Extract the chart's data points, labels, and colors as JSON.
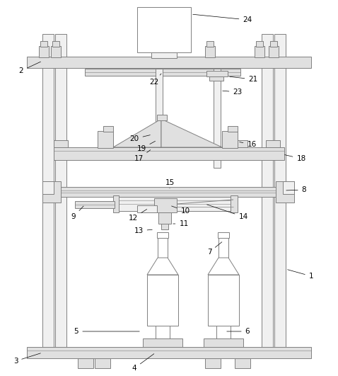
{
  "bg_color": "#ffffff",
  "line_color": "#808080",
  "fill_light": "#f0f0f0",
  "fill_mid": "#e0e0e0",
  "fill_dark": "#d0d0d0",
  "label_color": "#000000",
  "fig_width": 4.78,
  "fig_height": 5.31,
  "dpi": 100
}
